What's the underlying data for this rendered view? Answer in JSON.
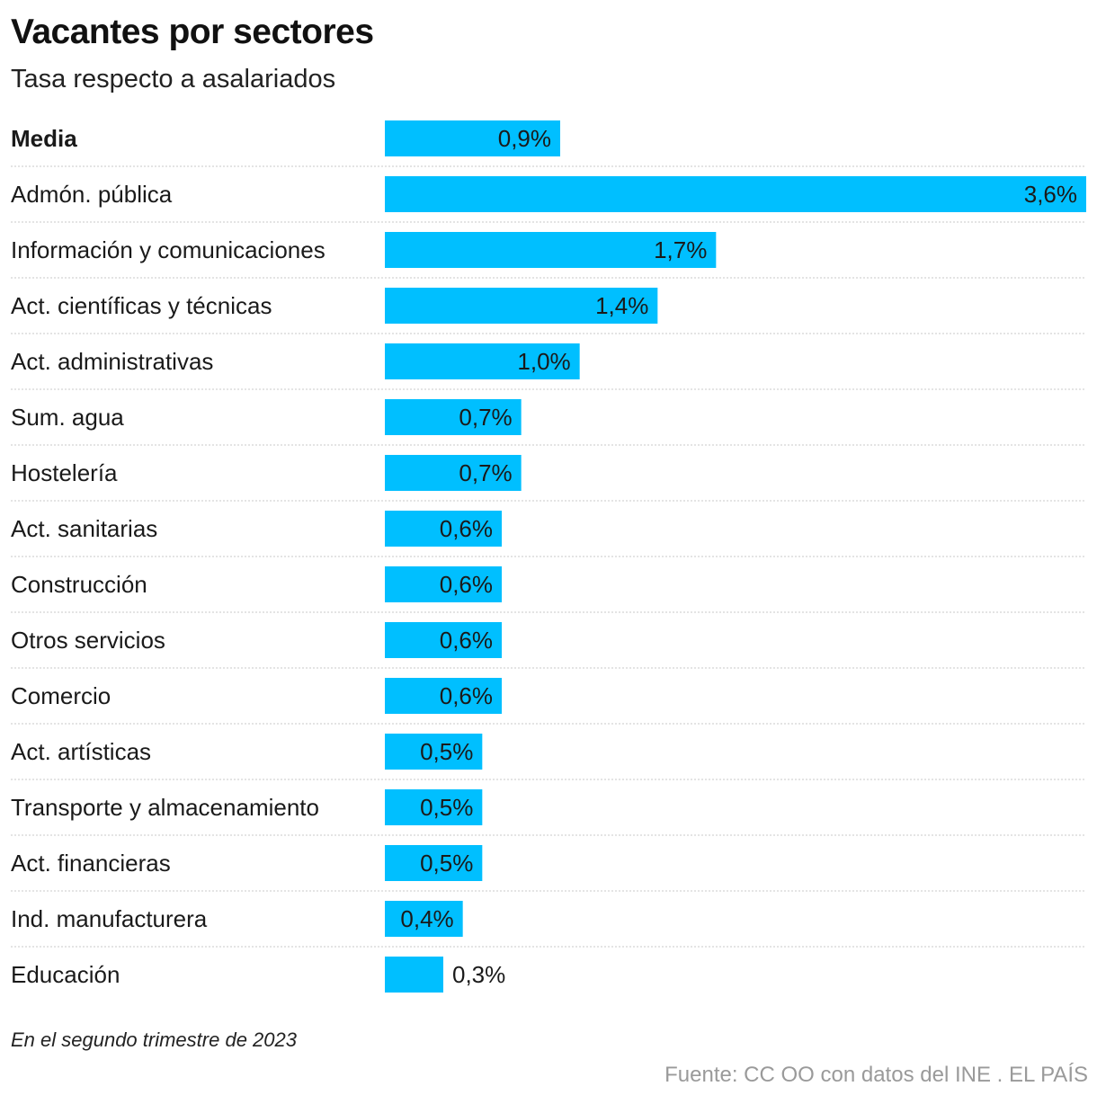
{
  "header": {
    "title": "Vacantes por sectores",
    "subtitle": "Tasa respecto a asalariados"
  },
  "footer": {
    "footnote": "En el segundo trimestre de 2023",
    "source": "Fuente: CC OO con datos del INE . EL PAÍS"
  },
  "colors": {
    "bar": "#00bfff",
    "text": "#1a1a1a",
    "separator": "#c8c8c8",
    "source_text": "#9a9a9a"
  },
  "chart_data": {
    "type": "bar",
    "orientation": "horizontal",
    "title": "Vacantes por sectores",
    "subtitle": "Tasa respecto a asalariados",
    "xlabel": "",
    "ylabel": "",
    "xlim": [
      0,
      3.6
    ],
    "grid": false,
    "legend": "none",
    "highlighted_category": "Media",
    "categories": [
      "Media",
      "Admón. pública",
      "Información y comunicaciones",
      "Act. científicas y técnicas",
      "Act. administrativas",
      "Sum. agua",
      "Hostelería",
      "Act. sanitarias",
      "Construcción",
      "Otros servicios",
      "Comercio",
      "Act. artísticas",
      "Transporte y almacenamiento",
      "Act. financieras",
      "Ind. manufacturera",
      "Educación"
    ],
    "values": [
      0.9,
      3.6,
      1.7,
      1.4,
      1.0,
      0.7,
      0.7,
      0.6,
      0.6,
      0.6,
      0.6,
      0.5,
      0.5,
      0.5,
      0.4,
      0.3
    ],
    "data_labels": [
      "0,9%",
      "3,6%",
      "1,7%",
      "1,4%",
      "1,0%",
      "0,7%",
      "0,7%",
      "0,6%",
      "0,6%",
      "0,6%",
      "0,6%",
      "0,5%",
      "0,5%",
      "0,5%",
      "0,4%",
      "0,3%"
    ]
  }
}
